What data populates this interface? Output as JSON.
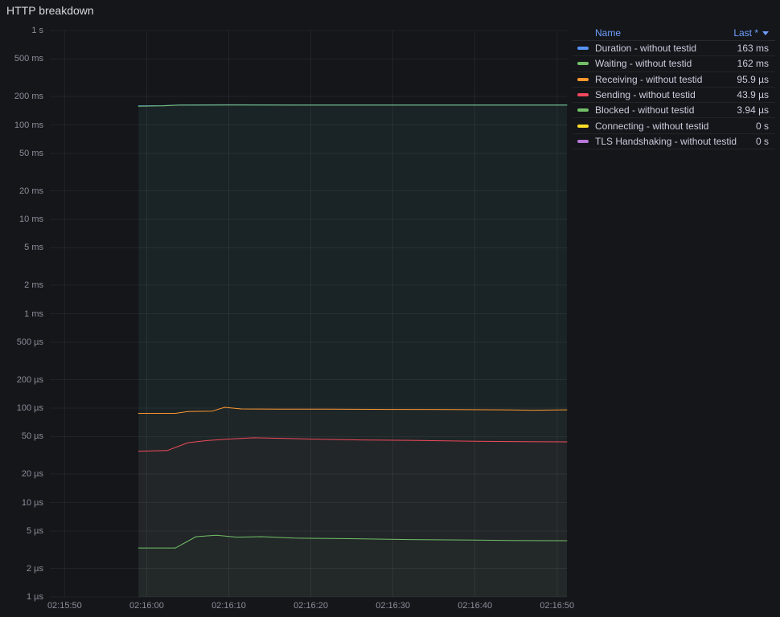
{
  "panel": {
    "title": "HTTP breakdown"
  },
  "legend": {
    "name_header": "Name",
    "value_header": "Last *",
    "sort": "desc"
  },
  "chart_data": {
    "type": "line",
    "title": "HTTP breakdown",
    "y_scale": "log",
    "y_unit": "seconds",
    "y_domain": [
      1e-06,
      1
    ],
    "x_domain": [
      -1.8,
      61.2
    ],
    "grid": true,
    "legend_position": "right-table",
    "y_ticks": [
      {
        "v": 1,
        "label": "1 s"
      },
      {
        "v": 0.5,
        "label": "500 ms"
      },
      {
        "v": 0.2,
        "label": "200 ms"
      },
      {
        "v": 0.1,
        "label": "100 ms"
      },
      {
        "v": 0.05,
        "label": "50 ms"
      },
      {
        "v": 0.02,
        "label": "20 ms"
      },
      {
        "v": 0.01,
        "label": "10 ms"
      },
      {
        "v": 0.005,
        "label": "5 ms"
      },
      {
        "v": 0.002,
        "label": "2 ms"
      },
      {
        "v": 0.001,
        "label": "1 ms"
      },
      {
        "v": 0.0005,
        "label": "500 µs"
      },
      {
        "v": 0.0002,
        "label": "200 µs"
      },
      {
        "v": 0.0001,
        "label": "100 µs"
      },
      {
        "v": 5e-05,
        "label": "50 µs"
      },
      {
        "v": 2e-05,
        "label": "20 µs"
      },
      {
        "v": 1e-05,
        "label": "10 µs"
      },
      {
        "v": 5e-06,
        "label": "5 µs"
      },
      {
        "v": 2e-06,
        "label": "2 µs"
      },
      {
        "v": 1e-06,
        "label": "1 µs"
      }
    ],
    "x_ticks": [
      {
        "t": 0,
        "label": "02:15:50"
      },
      {
        "t": 10,
        "label": "02:16:00"
      },
      {
        "t": 20,
        "label": "02:16:10"
      },
      {
        "t": 30,
        "label": "02:16:20"
      },
      {
        "t": 40,
        "label": "02:16:30"
      },
      {
        "t": 50,
        "label": "02:16:40"
      },
      {
        "t": 60,
        "label": "02:16:50"
      }
    ],
    "series": [
      {
        "name": "Duration - without testid",
        "color": "#5794F2",
        "last": "163 ms",
        "fill_opacity": 0.05,
        "points": [
          [
            9,
            0.159
          ],
          [
            12,
            0.16
          ],
          [
            14,
            0.163
          ],
          [
            20,
            0.1635
          ],
          [
            28,
            0.163
          ],
          [
            36,
            0.163
          ],
          [
            44,
            0.163
          ],
          [
            52,
            0.163
          ],
          [
            61.2,
            0.163
          ]
        ]
      },
      {
        "name": "Waiting - without testid",
        "color": "#73BF69",
        "last": "162 ms",
        "fill_opacity": 0.05,
        "points": [
          [
            9,
            0.158
          ],
          [
            12,
            0.159
          ],
          [
            14,
            0.162
          ],
          [
            20,
            0.1622
          ],
          [
            28,
            0.162
          ],
          [
            36,
            0.162
          ],
          [
            44,
            0.162
          ],
          [
            52,
            0.162
          ],
          [
            61.2,
            0.162
          ]
        ]
      },
      {
        "name": "Receiving - without testid",
        "color": "#FF9830",
        "last": "95.9 µs",
        "fill_opacity": 0.02,
        "points": [
          [
            9,
            8.8e-05
          ],
          [
            13.5,
            8.8e-05
          ],
          [
            15,
            9.2e-05
          ],
          [
            18,
            9.3e-05
          ],
          [
            19.5,
            0.000102
          ],
          [
            21.5,
            9.8e-05
          ],
          [
            26,
            9.75e-05
          ],
          [
            32,
            9.75e-05
          ],
          [
            40,
            9.7e-05
          ],
          [
            47,
            9.65e-05
          ],
          [
            53,
            9.6e-05
          ],
          [
            57,
            9.5e-05
          ],
          [
            61.2,
            9.59e-05
          ]
        ]
      },
      {
        "name": "Sending - without testid",
        "color": "#F2495C",
        "last": "43.9 µs",
        "fill_opacity": 0.02,
        "points": [
          [
            9,
            3.5e-05
          ],
          [
            12.5,
            3.55e-05
          ],
          [
            15,
            4.3e-05
          ],
          [
            17.5,
            4.55e-05
          ],
          [
            20,
            4.7e-05
          ],
          [
            23,
            4.85e-05
          ],
          [
            26,
            4.8e-05
          ],
          [
            30,
            4.7e-05
          ],
          [
            36,
            4.6e-05
          ],
          [
            43,
            4.55e-05
          ],
          [
            50,
            4.45e-05
          ],
          [
            56,
            4.42e-05
          ],
          [
            61.2,
            4.39e-05
          ]
        ]
      },
      {
        "name": "Blocked - without testid",
        "color": "#73BF69",
        "last": "3.94 µs",
        "fill_opacity": 0.02,
        "points": [
          [
            9,
            3.3e-06
          ],
          [
            13.5,
            3.3e-06
          ],
          [
            16,
            4.35e-06
          ],
          [
            18.5,
            4.5e-06
          ],
          [
            21,
            4.3e-06
          ],
          [
            24,
            4.35e-06
          ],
          [
            28,
            4.2e-06
          ],
          [
            34,
            4.15e-06
          ],
          [
            42,
            4.05e-06
          ],
          [
            50,
            4e-06
          ],
          [
            56,
            3.95e-06
          ],
          [
            61.2,
            3.94e-06
          ]
        ]
      },
      {
        "name": "Connecting - without testid",
        "color": "#FADE2A",
        "last": "0 s",
        "fill_opacity": 0,
        "points": []
      },
      {
        "name": "TLS Handshaking - without testid",
        "color": "#B877D9",
        "last": "0 s",
        "fill_opacity": 0,
        "points": []
      }
    ]
  }
}
